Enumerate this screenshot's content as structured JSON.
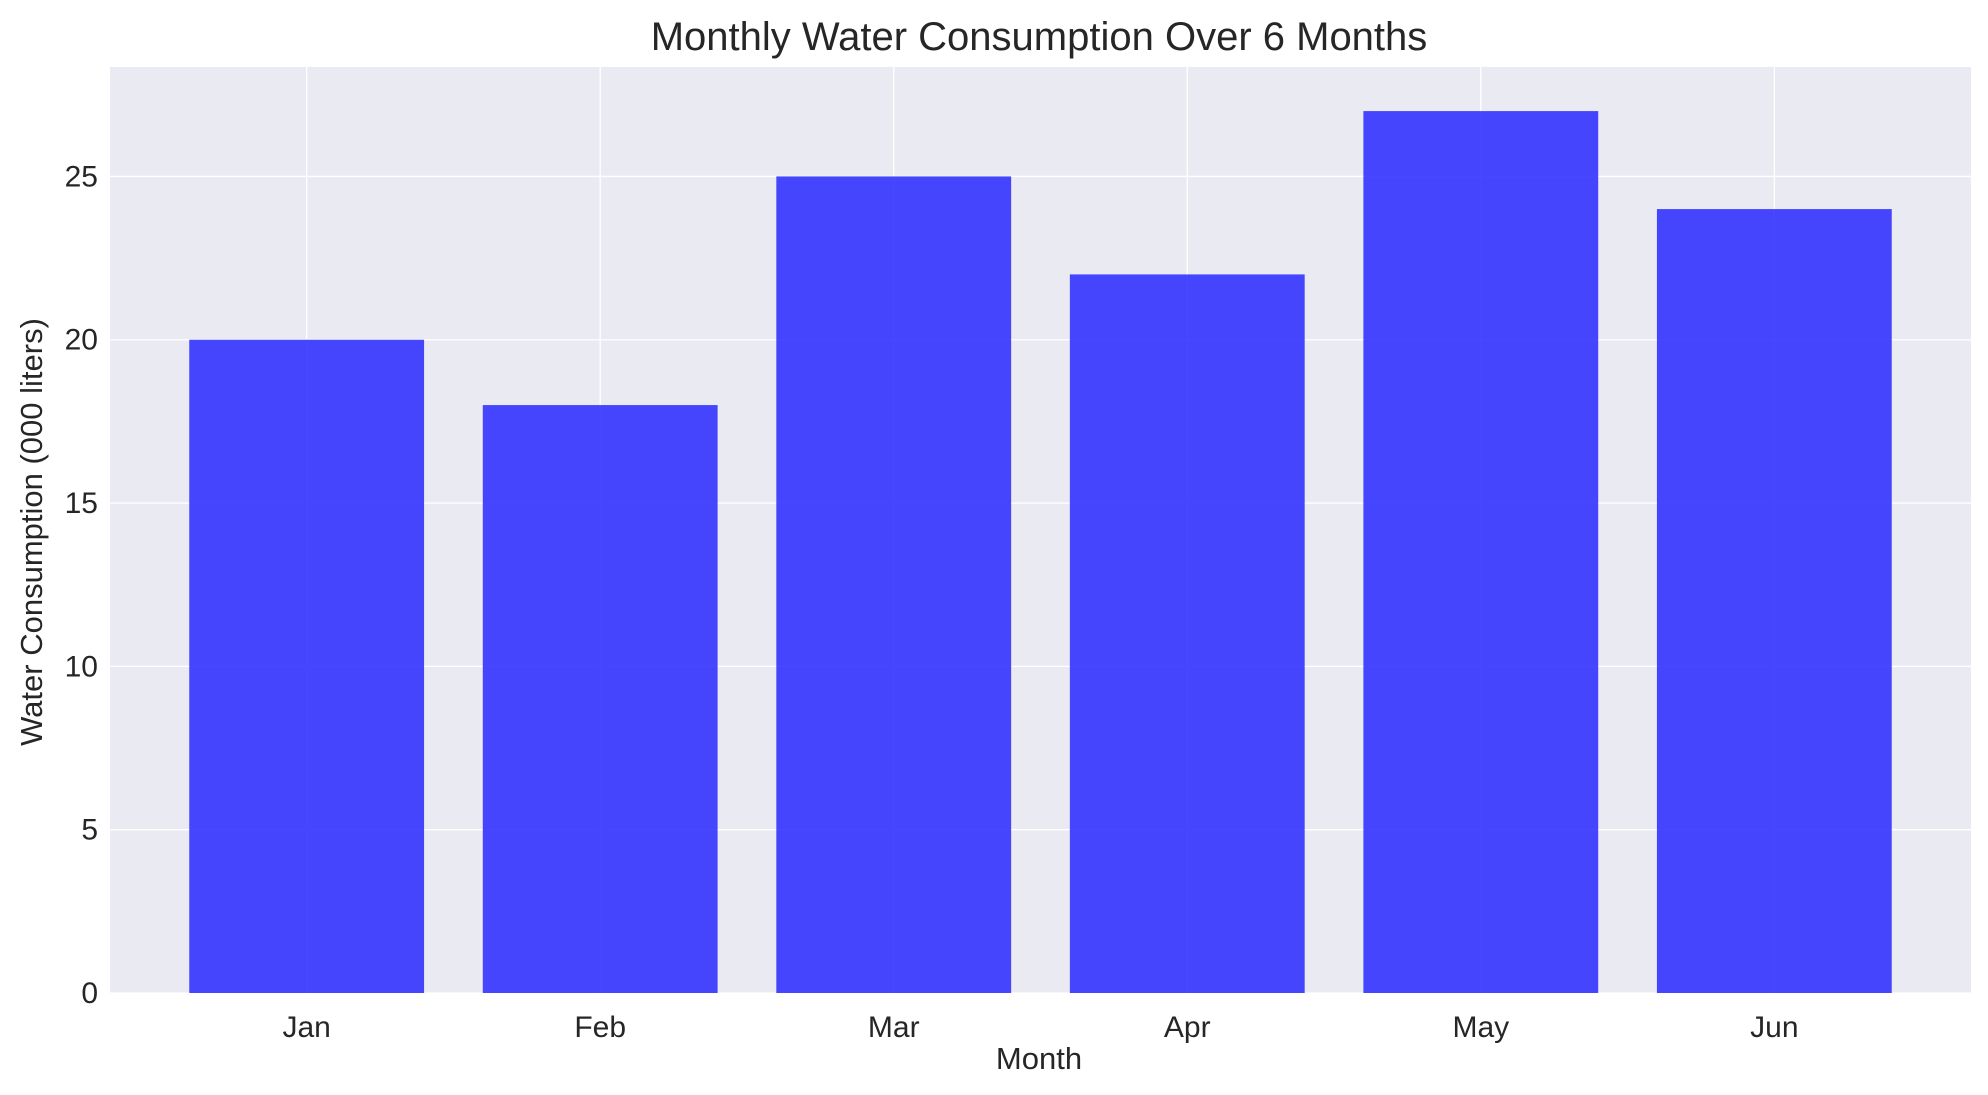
{
  "chart_data": {
    "type": "bar",
    "title": "Monthly Water Consumption Over 6 Months",
    "xlabel": "Month",
    "ylabel": "Water Consumption (000 liters)",
    "categories": [
      "Jan",
      "Feb",
      "Mar",
      "Apr",
      "May",
      "Jun"
    ],
    "values": [
      20,
      18,
      25,
      22,
      27,
      24
    ],
    "ylim": [
      0,
      28.35
    ],
    "yticks": [
      0,
      5,
      10,
      15,
      20,
      25
    ],
    "grid": true,
    "legend": "none",
    "colors": {
      "bar": "#3333ff",
      "plot_background": "#eaeaf2",
      "grid": "#ffffff",
      "text": "#262626"
    }
  }
}
